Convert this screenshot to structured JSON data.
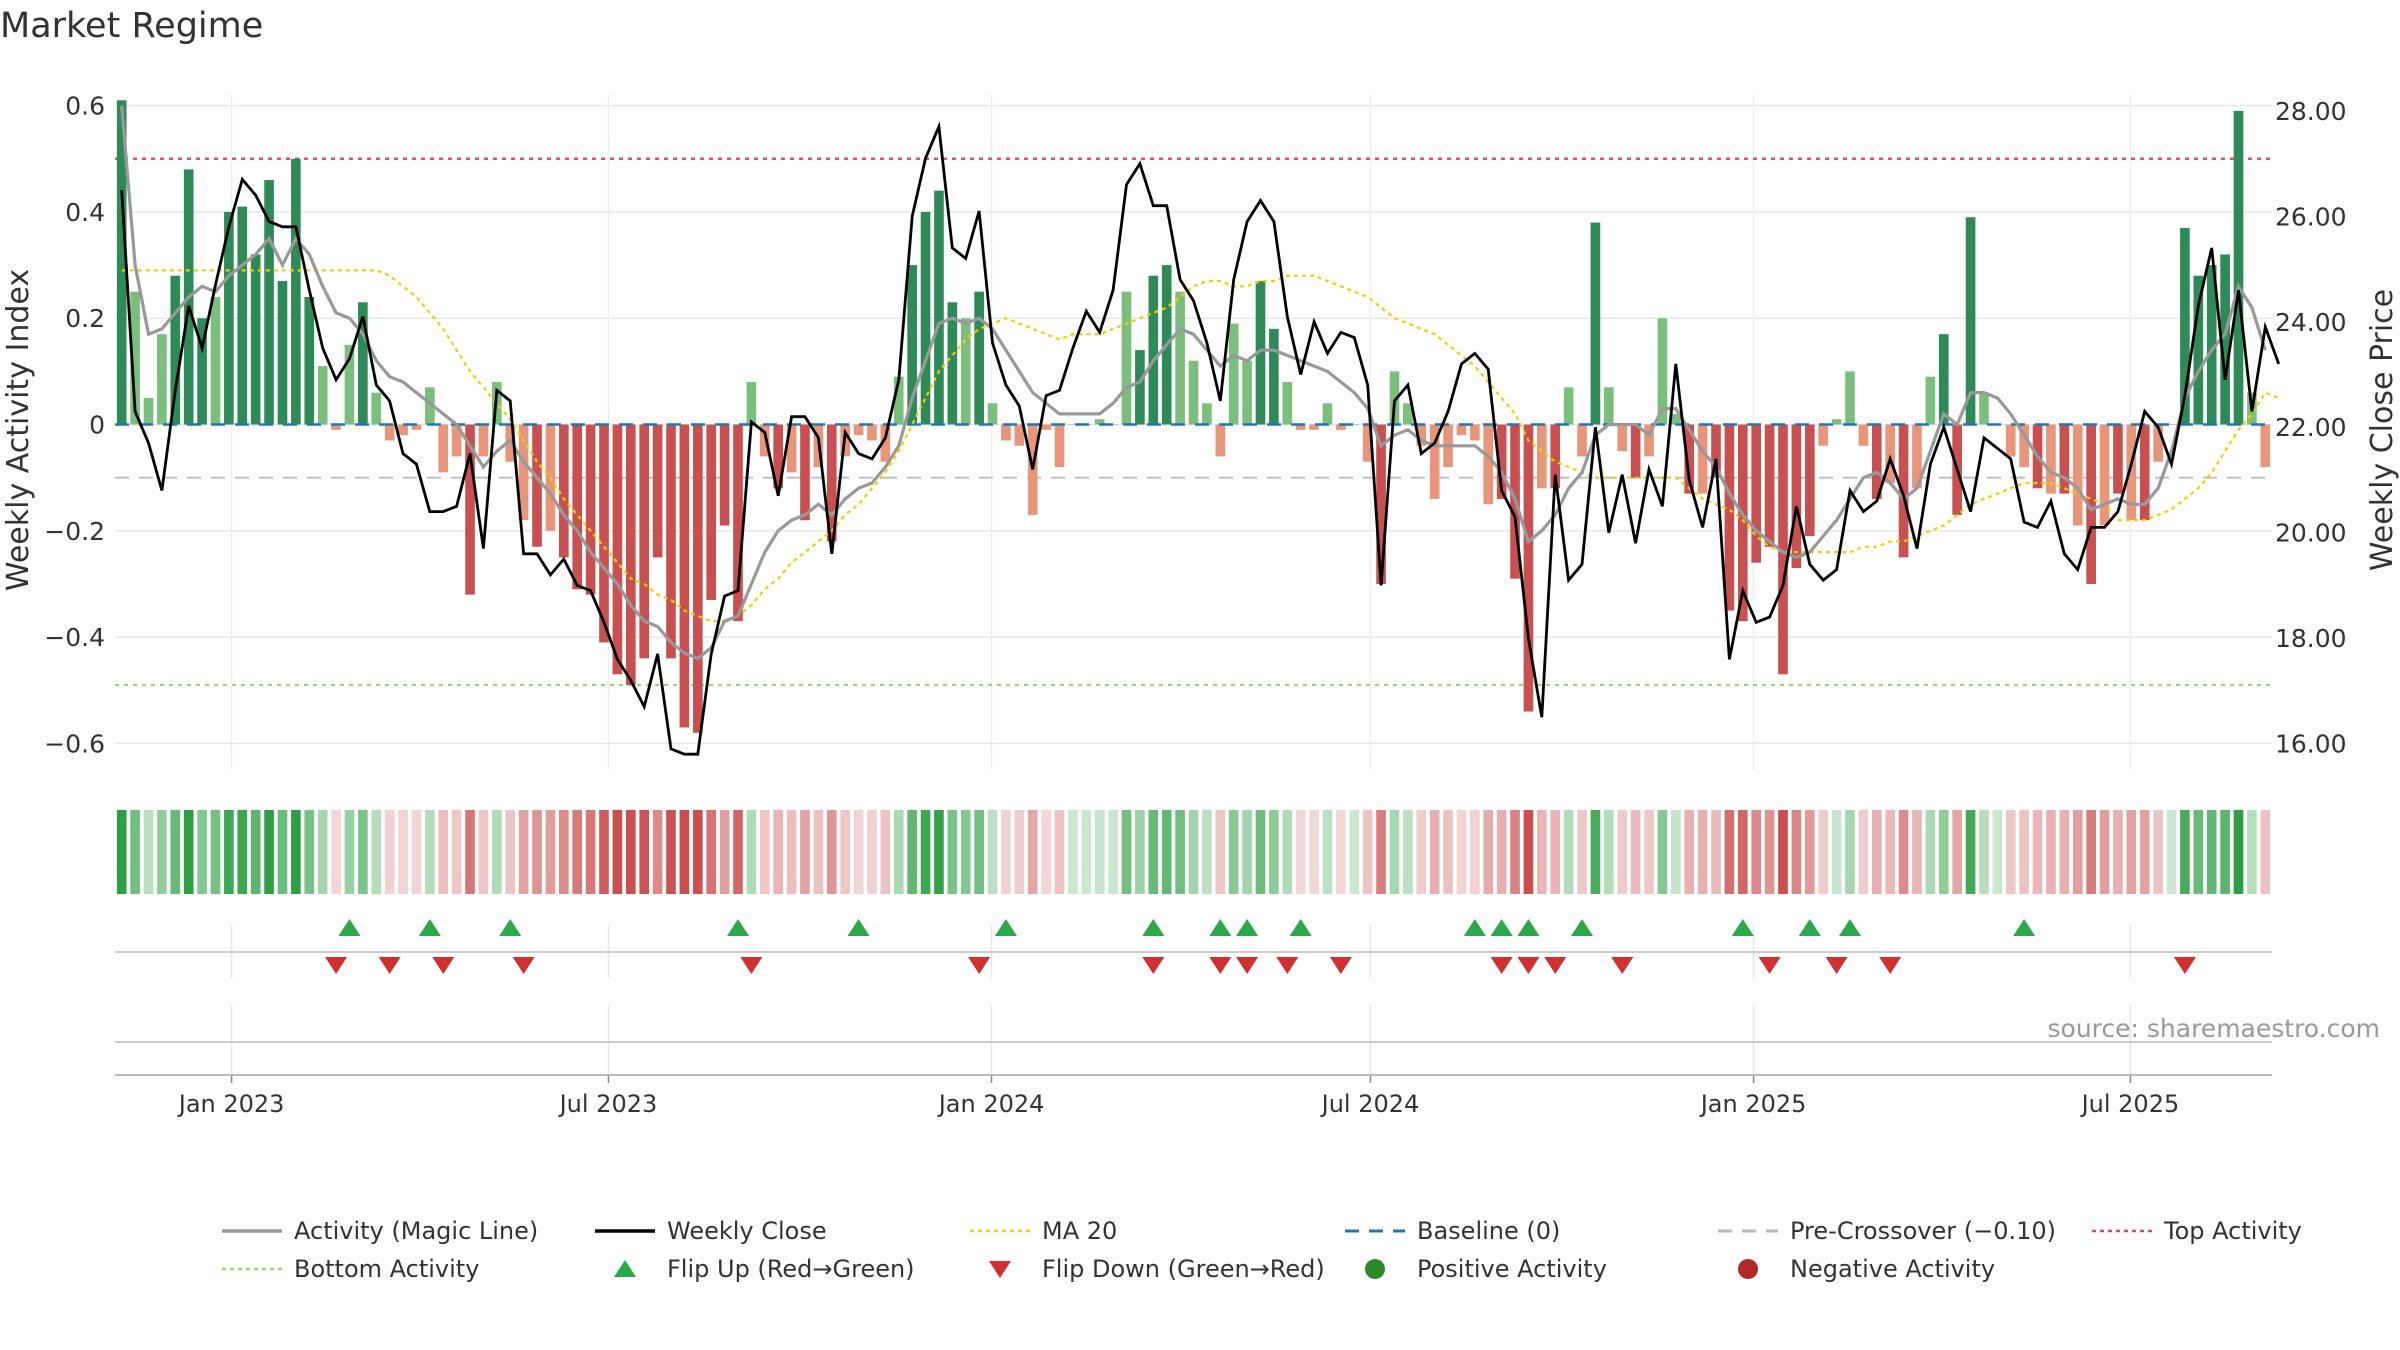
{
  "title": "Market Regime",
  "source": "source: sharemaestro.com",
  "chart_data": {
    "type": "bar+line",
    "title": "Market Regime",
    "ylabel_left": "Weekly Activity Index",
    "ylabel_right": "Weekly Close Price",
    "ylim_left": [
      -0.65,
      0.62
    ],
    "ylim_right": [
      15.5,
      28.3
    ],
    "yticks_left": [
      0.6,
      0.4,
      0.2,
      0,
      -0.2,
      -0.4,
      -0.6
    ],
    "ytick_labels_left": [
      "0.6",
      "0.4",
      "0.2",
      "0",
      "−0.2",
      "−0.4",
      "−0.6"
    ],
    "yticks_right": [
      28,
      26,
      24,
      22,
      20,
      18,
      16
    ],
    "ytick_labels_right": [
      "28.00",
      "26.00",
      "24.00",
      "22.00",
      "20.00",
      "18.00",
      "16.00"
    ],
    "x_start": "2022-11-06",
    "x_end": "2025-09-07",
    "xticks": [
      {
        "date": "2023-01-01",
        "label": "Jan 2023"
      },
      {
        "date": "2023-07-01",
        "label": "Jul 2023"
      },
      {
        "date": "2024-01-01",
        "label": "Jan 2024"
      },
      {
        "date": "2024-07-01",
        "label": "Jul 2024"
      },
      {
        "date": "2025-01-01",
        "label": "Jan 2025"
      },
      {
        "date": "2025-07-01",
        "label": "Jul 2025"
      }
    ],
    "reference_lines": {
      "top_activity": 0.5,
      "bottom_activity": -0.49,
      "pre_crossover": -0.1,
      "baseline": 0
    },
    "series": {
      "activity": [
        0.61,
        0.25,
        0.05,
        0.17,
        0.28,
        0.48,
        0.2,
        0.24,
        0.4,
        0.41,
        0.32,
        0.46,
        0.27,
        0.5,
        0.24,
        0.11,
        -0.01,
        0.15,
        0.23,
        0.06,
        -0.03,
        -0.02,
        -0.01,
        0.07,
        -0.09,
        -0.06,
        -0.32,
        -0.06,
        0.08,
        -0.07,
        -0.18,
        -0.23,
        -0.2,
        -0.25,
        -0.31,
        -0.32,
        -0.41,
        -0.47,
        -0.49,
        -0.44,
        -0.25,
        -0.44,
        -0.57,
        -0.58,
        -0.33,
        -0.19,
        -0.37,
        0.08,
        -0.06,
        -0.12,
        -0.09,
        -0.18,
        -0.08,
        -0.22,
        -0.06,
        -0.02,
        -0.03,
        -0.07,
        0.09,
        0.3,
        0.4,
        0.44,
        0.23,
        0.2,
        0.25,
        0.04,
        -0.03,
        -0.04,
        -0.17,
        -0.01,
        -0.08,
        0.0,
        0.0,
        0.01,
        0.0,
        0.25,
        0.14,
        0.28,
        0.3,
        0.25,
        0.12,
        0.04,
        -0.06,
        0.19,
        0.12,
        0.27,
        0.18,
        0.08,
        -0.01,
        -0.01,
        0.04,
        -0.01,
        0.0,
        -0.07,
        -0.3,
        0.1,
        0.04,
        -0.04,
        -0.14,
        -0.08,
        -0.02,
        -0.03,
        -0.15,
        -0.14,
        -0.29,
        -0.54,
        -0.12,
        -0.12,
        0.07,
        -0.06,
        0.38,
        0.07,
        -0.05,
        -0.1,
        -0.06,
        0.2,
        0.02,
        -0.13,
        -0.13,
        -0.1,
        -0.35,
        -0.37,
        -0.26,
        -0.23,
        -0.47,
        -0.27,
        -0.21,
        -0.04,
        0.01,
        0.1,
        -0.04,
        -0.14,
        -0.11,
        -0.25,
        -0.12,
        0.09,
        0.17,
        -0.17,
        0.39,
        0.06,
        0.0,
        -0.06,
        -0.08,
        -0.12,
        -0.13,
        -0.13,
        -0.19,
        -0.3,
        -0.19,
        -0.13,
        -0.18,
        -0.18,
        -0.07,
        0.0,
        0.37,
        0.28,
        0.3,
        0.32,
        0.59,
        0.06,
        -0.08
      ],
      "magic_line": [
        0.6,
        0.3,
        0.17,
        0.18,
        0.21,
        0.24,
        0.26,
        0.25,
        0.28,
        0.3,
        0.32,
        0.35,
        0.3,
        0.35,
        0.32,
        0.26,
        0.21,
        0.2,
        0.17,
        0.12,
        0.09,
        0.08,
        0.06,
        0.04,
        0.02,
        0.0,
        -0.04,
        -0.08,
        -0.05,
        -0.03,
        -0.07,
        -0.1,
        -0.13,
        -0.17,
        -0.2,
        -0.24,
        -0.27,
        -0.3,
        -0.34,
        -0.37,
        -0.38,
        -0.41,
        -0.43,
        -0.44,
        -0.42,
        -0.37,
        -0.36,
        -0.3,
        -0.24,
        -0.2,
        -0.18,
        -0.17,
        -0.15,
        -0.17,
        -0.14,
        -0.12,
        -0.11,
        -0.08,
        -0.04,
        0.05,
        0.12,
        0.19,
        0.2,
        0.19,
        0.2,
        0.18,
        0.14,
        0.1,
        0.06,
        0.04,
        0.02,
        0.02,
        0.02,
        0.02,
        0.04,
        0.07,
        0.08,
        0.12,
        0.15,
        0.18,
        0.17,
        0.14,
        0.11,
        0.13,
        0.12,
        0.14,
        0.14,
        0.13,
        0.12,
        0.11,
        0.1,
        0.08,
        0.06,
        0.03,
        -0.04,
        -0.02,
        -0.01,
        -0.03,
        -0.04,
        -0.04,
        -0.04,
        -0.04,
        -0.06,
        -0.09,
        -0.14,
        -0.22,
        -0.2,
        -0.17,
        -0.12,
        -0.09,
        -0.02,
        0.0,
        0.0,
        0.0,
        -0.02,
        0.03,
        0.03,
        -0.01,
        -0.05,
        -0.08,
        -0.13,
        -0.17,
        -0.2,
        -0.22,
        -0.24,
        -0.25,
        -0.24,
        -0.21,
        -0.18,
        -0.14,
        -0.1,
        -0.09,
        -0.11,
        -0.14,
        -0.12,
        -0.05,
        0.02,
        0.0,
        0.06,
        0.06,
        0.05,
        0.02,
        -0.02,
        -0.06,
        -0.09,
        -0.1,
        -0.12,
        -0.16,
        -0.15,
        -0.14,
        -0.15,
        -0.15,
        -0.12,
        -0.05,
        0.05,
        0.1,
        0.14,
        0.17,
        0.26,
        0.22,
        0.14
      ],
      "ma20": [
        0.29,
        0.29,
        0.29,
        0.29,
        0.29,
        0.29,
        0.29,
        0.29,
        0.29,
        0.29,
        0.29,
        0.29,
        0.29,
        0.29,
        0.29,
        0.29,
        0.29,
        0.29,
        0.29,
        0.29,
        0.28,
        0.26,
        0.24,
        0.21,
        0.18,
        0.14,
        0.1,
        0.07,
        0.04,
        0.01,
        -0.03,
        -0.07,
        -0.1,
        -0.14,
        -0.17,
        -0.2,
        -0.23,
        -0.26,
        -0.29,
        -0.3,
        -0.32,
        -0.33,
        -0.35,
        -0.36,
        -0.37,
        -0.37,
        -0.36,
        -0.34,
        -0.31,
        -0.29,
        -0.26,
        -0.24,
        -0.22,
        -0.2,
        -0.17,
        -0.15,
        -0.12,
        -0.09,
        -0.05,
        0.0,
        0.05,
        0.1,
        0.13,
        0.16,
        0.18,
        0.19,
        0.2,
        0.19,
        0.18,
        0.17,
        0.16,
        0.17,
        0.17,
        0.17,
        0.18,
        0.19,
        0.2,
        0.21,
        0.22,
        0.24,
        0.26,
        0.27,
        0.27,
        0.26,
        0.26,
        0.27,
        0.27,
        0.28,
        0.28,
        0.28,
        0.27,
        0.26,
        0.25,
        0.24,
        0.22,
        0.2,
        0.19,
        0.18,
        0.17,
        0.15,
        0.13,
        0.11,
        0.08,
        0.05,
        0.02,
        -0.03,
        -0.05,
        -0.07,
        -0.08,
        -0.09,
        -0.1,
        -0.1,
        -0.1,
        -0.1,
        -0.1,
        -0.1,
        -0.1,
        -0.12,
        -0.14,
        -0.15,
        -0.16,
        -0.18,
        -0.21,
        -0.23,
        -0.24,
        -0.24,
        -0.24,
        -0.24,
        -0.24,
        -0.24,
        -0.23,
        -0.23,
        -0.22,
        -0.22,
        -0.21,
        -0.2,
        -0.19,
        -0.17,
        -0.15,
        -0.14,
        -0.13,
        -0.12,
        -0.11,
        -0.11,
        -0.11,
        -0.12,
        -0.13,
        -0.14,
        -0.15,
        -0.18,
        -0.18,
        -0.18,
        -0.17,
        -0.16,
        -0.14,
        -0.12,
        -0.09,
        -0.05,
        -0.01,
        0.02,
        0.06,
        0.05
      ],
      "close": [
        26.5,
        22.3,
        21.7,
        20.8,
        22.7,
        24.3,
        23.5,
        24.7,
        25.8,
        26.7,
        26.4,
        25.9,
        25.8,
        25.8,
        24.6,
        23.5,
        22.9,
        23.3,
        24.1,
        22.8,
        22.5,
        21.5,
        21.3,
        20.4,
        20.4,
        20.5,
        21.5,
        19.7,
        22.7,
        22.5,
        19.6,
        19.6,
        19.2,
        19.5,
        19.0,
        18.9,
        18.3,
        17.6,
        17.2,
        16.7,
        17.7,
        15.9,
        15.8,
        15.8,
        17.7,
        18.8,
        18.9,
        22.1,
        21.9,
        20.7,
        22.2,
        22.2,
        21.8,
        19.6,
        21.9,
        21.5,
        21.4,
        21.8,
        22.9,
        26.0,
        27.1,
        27.7,
        25.4,
        25.2,
        26.1,
        23.6,
        22.8,
        22.4,
        21.2,
        22.6,
        22.7,
        23.5,
        24.2,
        23.8,
        24.6,
        26.6,
        27.0,
        26.2,
        26.2,
        24.8,
        24.4,
        23.6,
        22.5,
        24.8,
        25.9,
        26.3,
        25.9,
        24.1,
        23.0,
        24.0,
        23.4,
        23.8,
        23.7,
        22.8,
        19.0,
        22.5,
        22.8,
        21.5,
        21.7,
        22.3,
        23.2,
        23.4,
        23.1,
        20.8,
        20.3,
        18.0,
        16.5,
        21.1,
        19.1,
        19.4,
        22.0,
        20.0,
        21.1,
        19.8,
        21.2,
        20.5,
        23.2,
        21.0,
        20.1,
        21.4,
        17.6,
        18.9,
        18.3,
        18.4,
        19.0,
        20.5,
        19.4,
        19.1,
        19.3,
        20.8,
        20.4,
        20.6,
        21.4,
        20.7,
        19.7,
        21.3,
        22.0,
        21.2,
        20.4,
        21.8,
        21.6,
        21.4,
        20.2,
        20.1,
        20.6,
        19.6,
        19.3,
        20.1,
        20.1,
        20.4,
        21.3,
        22.3,
        22.0,
        21.3,
        22.6,
        24.3,
        25.4,
        22.9,
        24.6,
        22.3,
        23.9,
        23.2
      ],
      "flip_up_weeks": [
        17,
        23,
        29,
        46,
        55,
        66,
        77,
        82,
        84,
        88,
        101,
        103,
        105,
        109,
        121,
        126,
        129,
        142
      ],
      "flip_down_weeks": [
        16,
        20,
        24,
        30,
        47,
        64,
        77,
        82,
        84,
        87,
        91,
        103,
        105,
        107,
        112,
        123,
        128,
        132,
        154
      ]
    }
  },
  "legend": [
    {
      "label": "Activity (Magic Line)",
      "kind": "line",
      "color": "#999999"
    },
    {
      "label": "Weekly Close",
      "kind": "line",
      "color": "#000000"
    },
    {
      "label": "MA 20",
      "kind": "dotted",
      "color": "#f0d000"
    },
    {
      "label": "Baseline (0)",
      "kind": "dashed",
      "color": "#1f77b4"
    },
    {
      "label": "Pre-Crossover (−0.10)",
      "kind": "dashed",
      "color": "#bbbbbb"
    },
    {
      "label": "Top Activity",
      "kind": "dotted",
      "color": "#e0405a"
    },
    {
      "label": "Bottom Activity",
      "kind": "dotted",
      "color": "#9ed46a"
    },
    {
      "label": "Flip Up (Red→Green)",
      "kind": "triangle-up",
      "color": "#2aa84a"
    },
    {
      "label": "Flip Down (Green→Red)",
      "kind": "triangle-down",
      "color": "#d03030"
    },
    {
      "label": "Positive Activity",
      "kind": "circle",
      "color": "#2a8a2a"
    },
    {
      "label": "Negative Activity",
      "kind": "circle",
      "color": "#b02828"
    }
  ],
  "colors": {
    "pos_strong": "#2e8b57",
    "pos_light": "#7cbf7c",
    "neg_strong": "#c85050",
    "neg_light": "#e8957a"
  }
}
